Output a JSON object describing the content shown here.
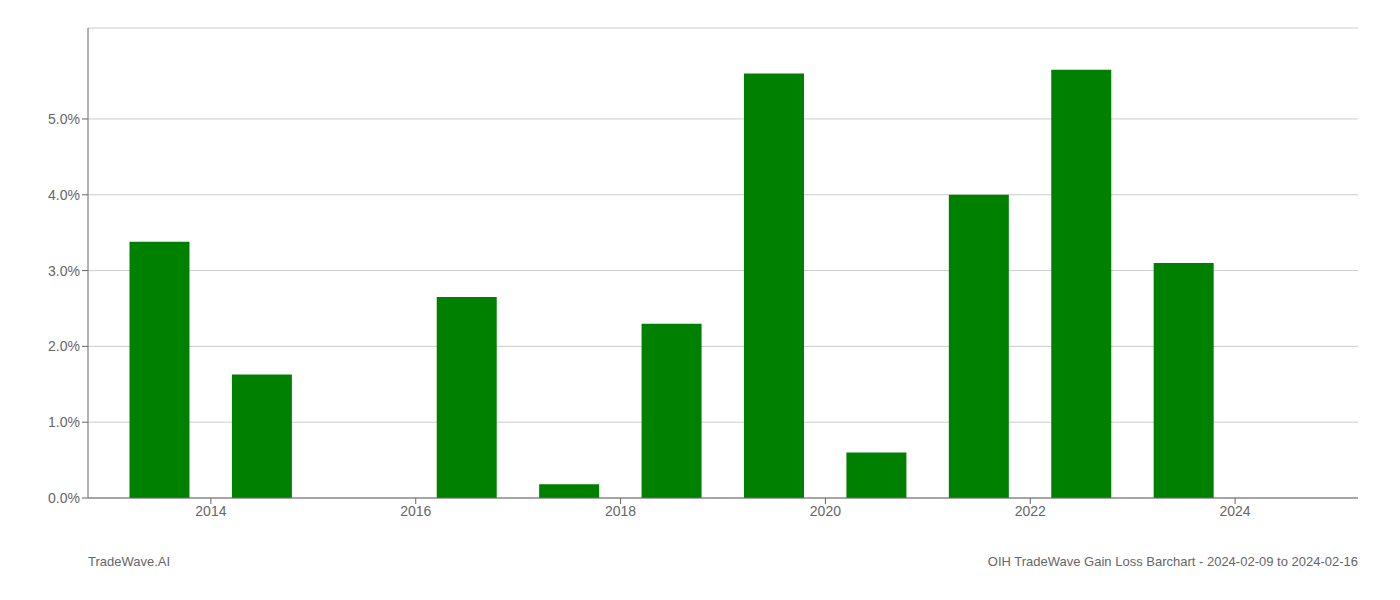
{
  "chart_data": {
    "type": "bar",
    "x": [
      2013,
      2014,
      2016,
      2017,
      2018,
      2019,
      2020,
      2021,
      2022,
      2023
    ],
    "values": [
      3.38,
      1.63,
      2.65,
      0.18,
      2.3,
      5.6,
      0.6,
      4.0,
      5.65,
      3.1
    ],
    "color": "#008000",
    "xlim": [
      2012.3,
      2024.7
    ],
    "xticks": [
      {
        "value": 2013.5,
        "label": "2014"
      },
      {
        "value": 2015.5,
        "label": "2016"
      },
      {
        "value": 2017.5,
        "label": "2018"
      },
      {
        "value": 2019.5,
        "label": "2020"
      },
      {
        "value": 2021.5,
        "label": "2022"
      },
      {
        "value": 2023.5,
        "label": "2024"
      }
    ],
    "ylim": [
      0,
      6.2
    ],
    "yticks": [
      {
        "value": 0.0,
        "label": "0.0%"
      },
      {
        "value": 1.0,
        "label": "1.0%"
      },
      {
        "value": 2.0,
        "label": "2.0%"
      },
      {
        "value": 3.0,
        "label": "3.0%"
      },
      {
        "value": 4.0,
        "label": "4.0%"
      },
      {
        "value": 5.0,
        "label": "5.0%"
      }
    ],
    "grid": true,
    "annotations": [
      "TradeWave.AI",
      "OIH TradeWave Gain Loss Barchart - 2024-02-09 to 2024-02-16"
    ]
  }
}
